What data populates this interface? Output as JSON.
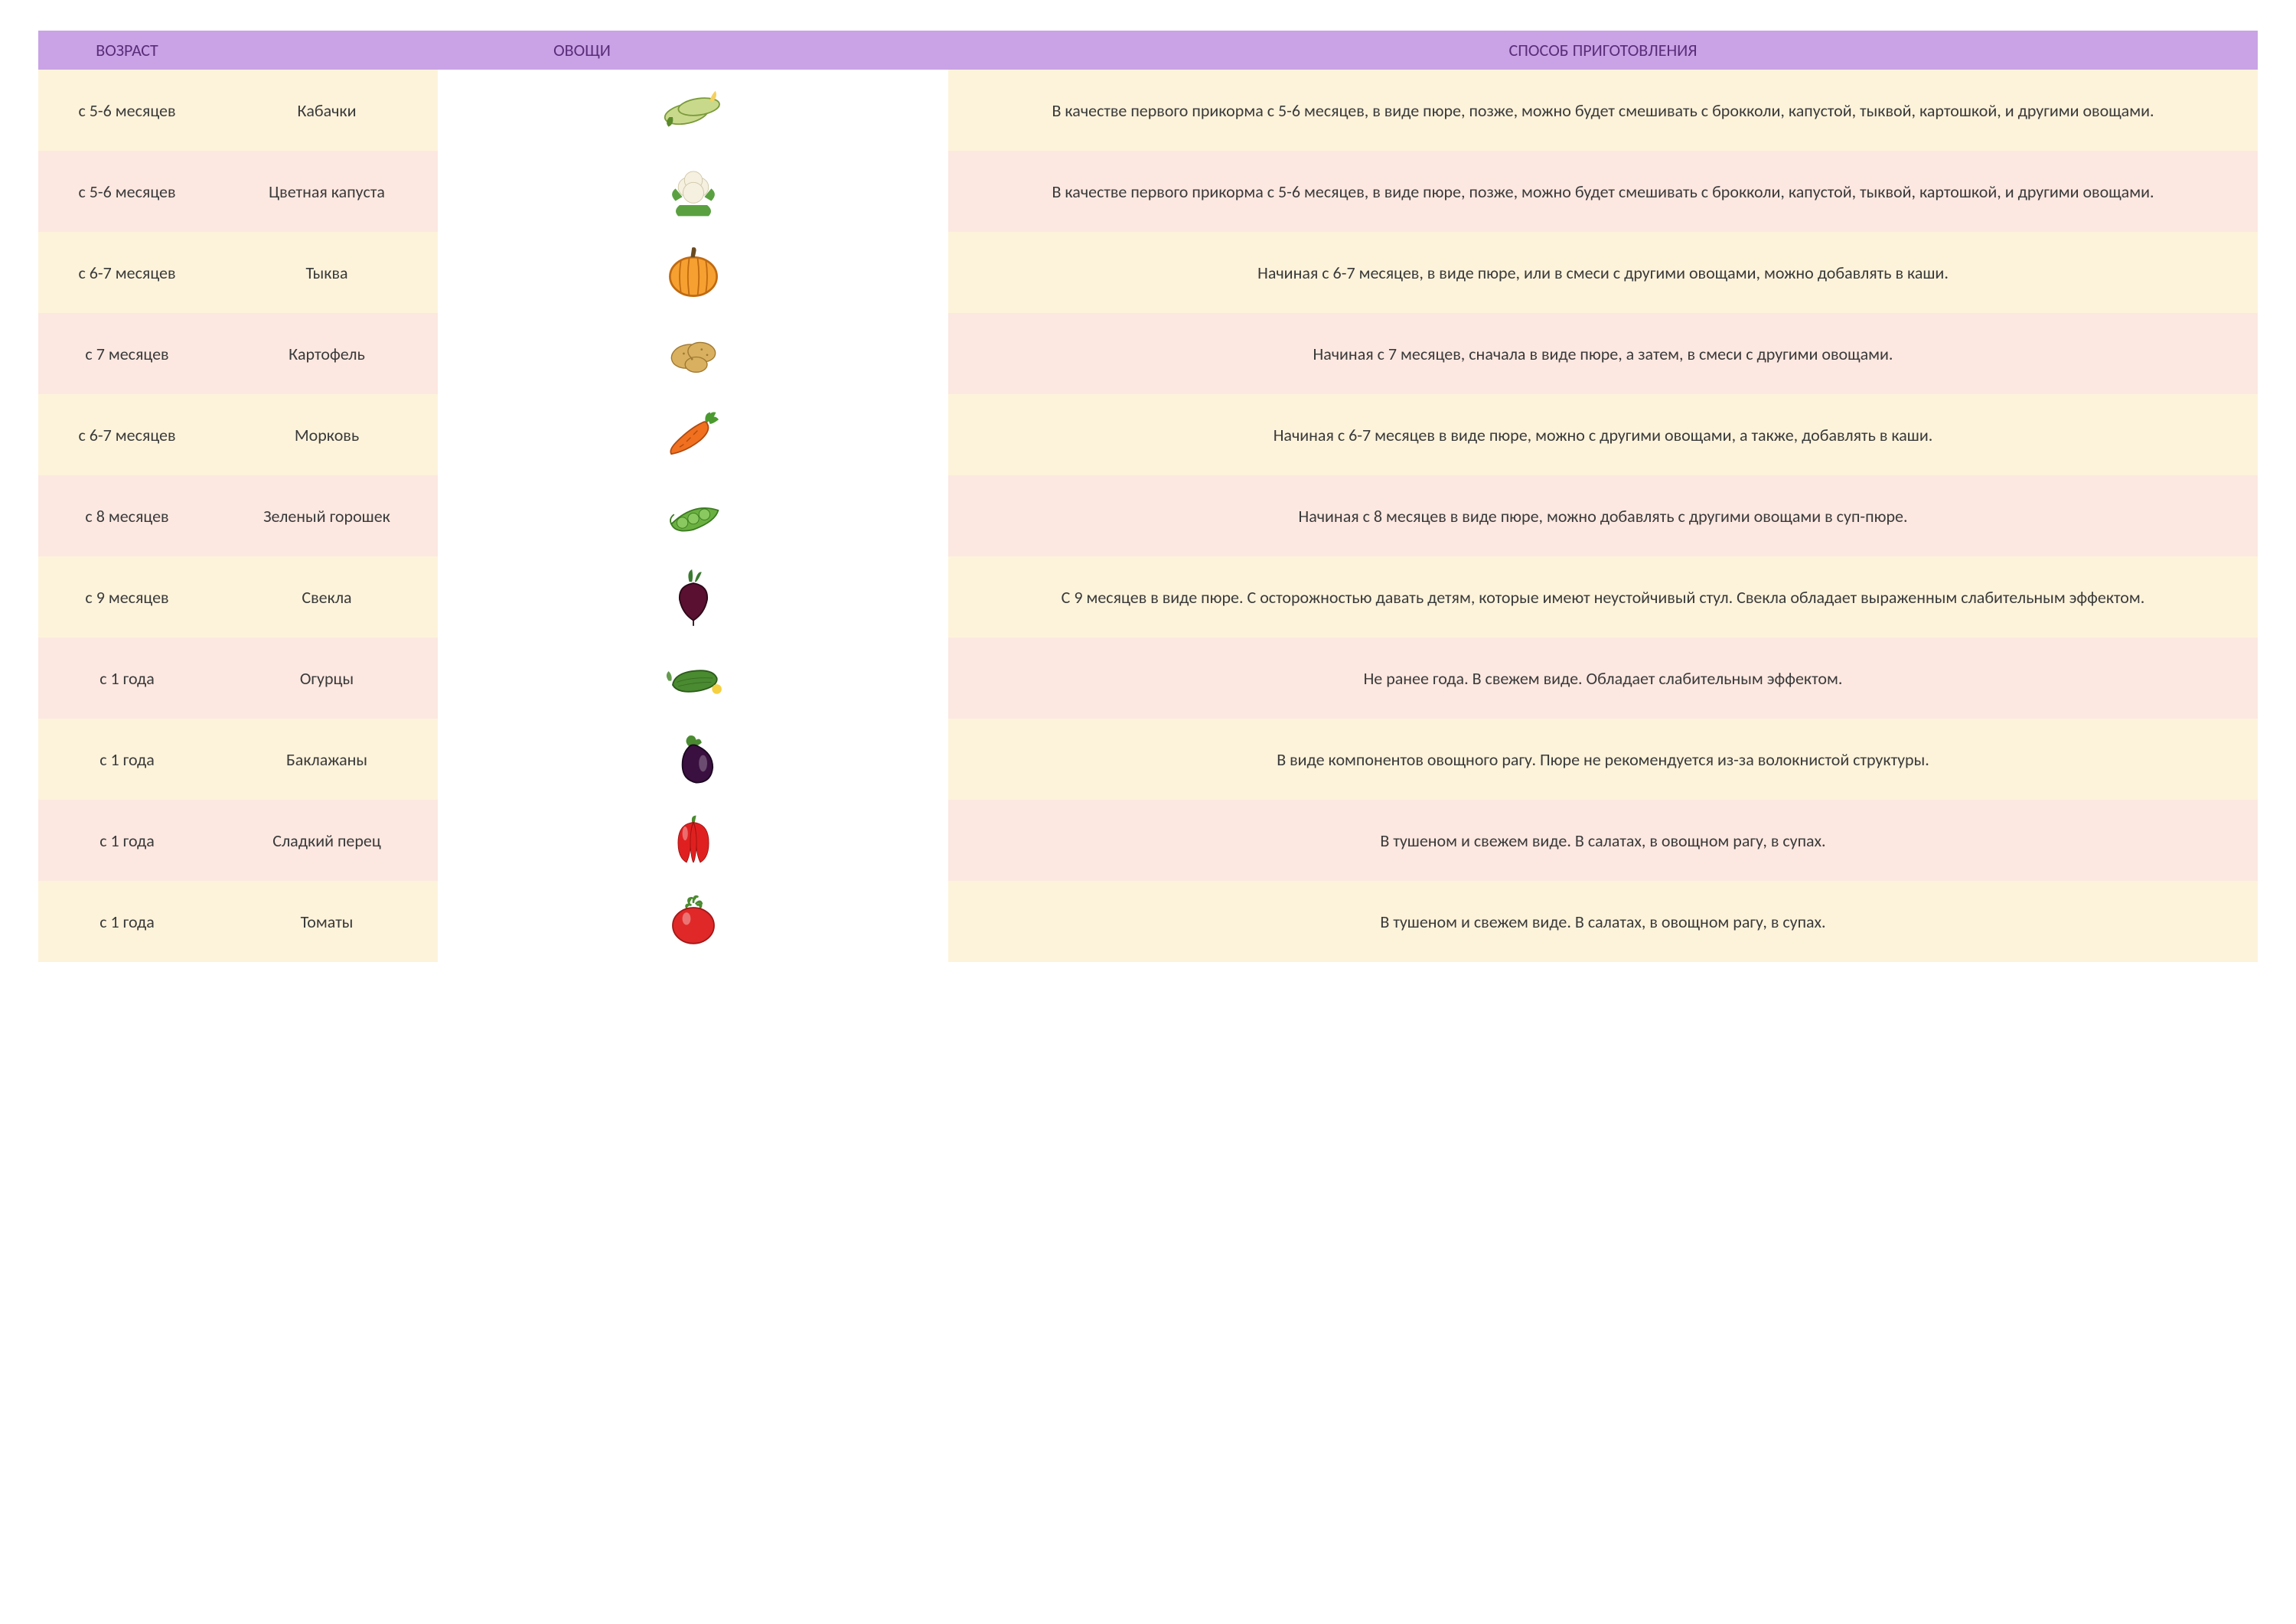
{
  "type": "table",
  "columns": [
    "ВОЗРАСТ",
    "ОВОЩИ",
    "СПОСОБ ПРИГОТОВЛЕНИЯ"
  ],
  "header": {
    "bg_color": "#c9a3e5",
    "text_color": "#5a2d7a",
    "fontsize": 22,
    "font_weight": 400
  },
  "body": {
    "fontsize": 22,
    "text_color": "#3a3a3a",
    "row_colors_alt": [
      "#fdf3db",
      "#fce8e1"
    ],
    "icon_size": 90
  },
  "rows": [
    {
      "age": "с 5-6 месяцев",
      "name": "Кабачки",
      "icon": "zucchini",
      "prep": "В качестве первого прикорма с 5-6 месяцев, в виде пюре, позже, можно будет смешивать с брокколи, капустой, тыквой, картошкой, и другими овощами."
    },
    {
      "age": "с 5-6 месяцев",
      "name": "Цветная капуста",
      "icon": "cauliflower",
      "prep": "В качестве первого прикорма с 5-6 месяцев, в виде пюре, позже, можно будет смешивать с брокколи, капустой, тыквой, картошкой, и другими овощами."
    },
    {
      "age": "с 6-7 месяцев",
      "name": "Тыква",
      "icon": "pumpkin",
      "prep": "Начиная с 6-7 месяцев, в виде пюре, или в смеси с другими овощами, можно добавлять в каши."
    },
    {
      "age": "с 7 месяцев",
      "name": "Картофель",
      "icon": "potato",
      "prep": "Начиная с 7 месяцев, сначала в виде пюре, а затем, в смеси с другими овощами."
    },
    {
      "age": "с 6-7 месяцев",
      "name": "Морковь",
      "icon": "carrot",
      "prep": "Начиная с 6-7 месяцев в виде пюре, можно с другими овощами, а также, добавлять в каши."
    },
    {
      "age": "с 8 месяцев",
      "name": "Зеленый горошек",
      "icon": "peas",
      "prep": "Начиная с 8 месяцев в виде пюре, можно добавлять с другими овощами в суп-пюре."
    },
    {
      "age": "с 9 месяцев",
      "name": "Свекла",
      "icon": "beet",
      "prep": "С 9 месяцев в виде пюре. С осторожностью давать детям, которые имеют неустойчивый стул. Свекла обладает выраженным слабительным эффектом."
    },
    {
      "age": "с 1 года",
      "name": "Огурцы",
      "icon": "cucumber",
      "prep": "Не ранее года. В свежем виде. Обладает слабительным эффектом."
    },
    {
      "age": "с 1 года",
      "name": "Баклажаны",
      "icon": "eggplant",
      "prep": "В виде компонентов овощного рагу. Пюре не рекомендуется из-за волокнистой структуры."
    },
    {
      "age": "с 1 года",
      "name": "Сладкий перец",
      "icon": "pepper",
      "prep": "В тушеном и свежем виде. В салатах, в овощном рагу, в супах."
    },
    {
      "age": "с 1 года",
      "name": "Томаты",
      "icon": "tomato",
      "prep": "В тушеном и свежем виде. В салатах, в овощном рагу, в супах."
    }
  ],
  "icons": {
    "zucchini": {
      "fill": "#c9d98c",
      "stroke": "#7a9a3a",
      "leaf": "#5a8a2a",
      "flower": "#f5d060"
    },
    "cauliflower": {
      "fill": "#f5f0e0",
      "stroke": "#d0c8a8",
      "leaf": "#5aa040"
    },
    "pumpkin": {
      "fill": "#f5a030",
      "stroke": "#c06a10",
      "stem": "#6a4a20"
    },
    "potato": {
      "fill": "#d8b060",
      "stroke": "#a07830"
    },
    "carrot": {
      "fill": "#f07020",
      "stroke": "#b04a10",
      "leaf": "#4a9a30"
    },
    "peas": {
      "fill": "#6ab040",
      "stroke": "#3a7a20",
      "pea": "#8ac860"
    },
    "beet": {
      "fill": "#5a1030",
      "stroke": "#2a0818",
      "leaf": "#3a7a30"
    },
    "cucumber": {
      "fill": "#4a8a30",
      "stroke": "#2a5a18",
      "flower": "#f5d040"
    },
    "eggplant": {
      "fill": "#3a1040",
      "stroke": "#1a0820",
      "cap": "#4a8a30"
    },
    "pepper": {
      "fill": "#e02020",
      "stroke": "#a01010",
      "stem": "#4a8a30"
    },
    "tomato": {
      "fill": "#e02828",
      "stroke": "#a01818",
      "stem": "#4a8a30"
    }
  }
}
